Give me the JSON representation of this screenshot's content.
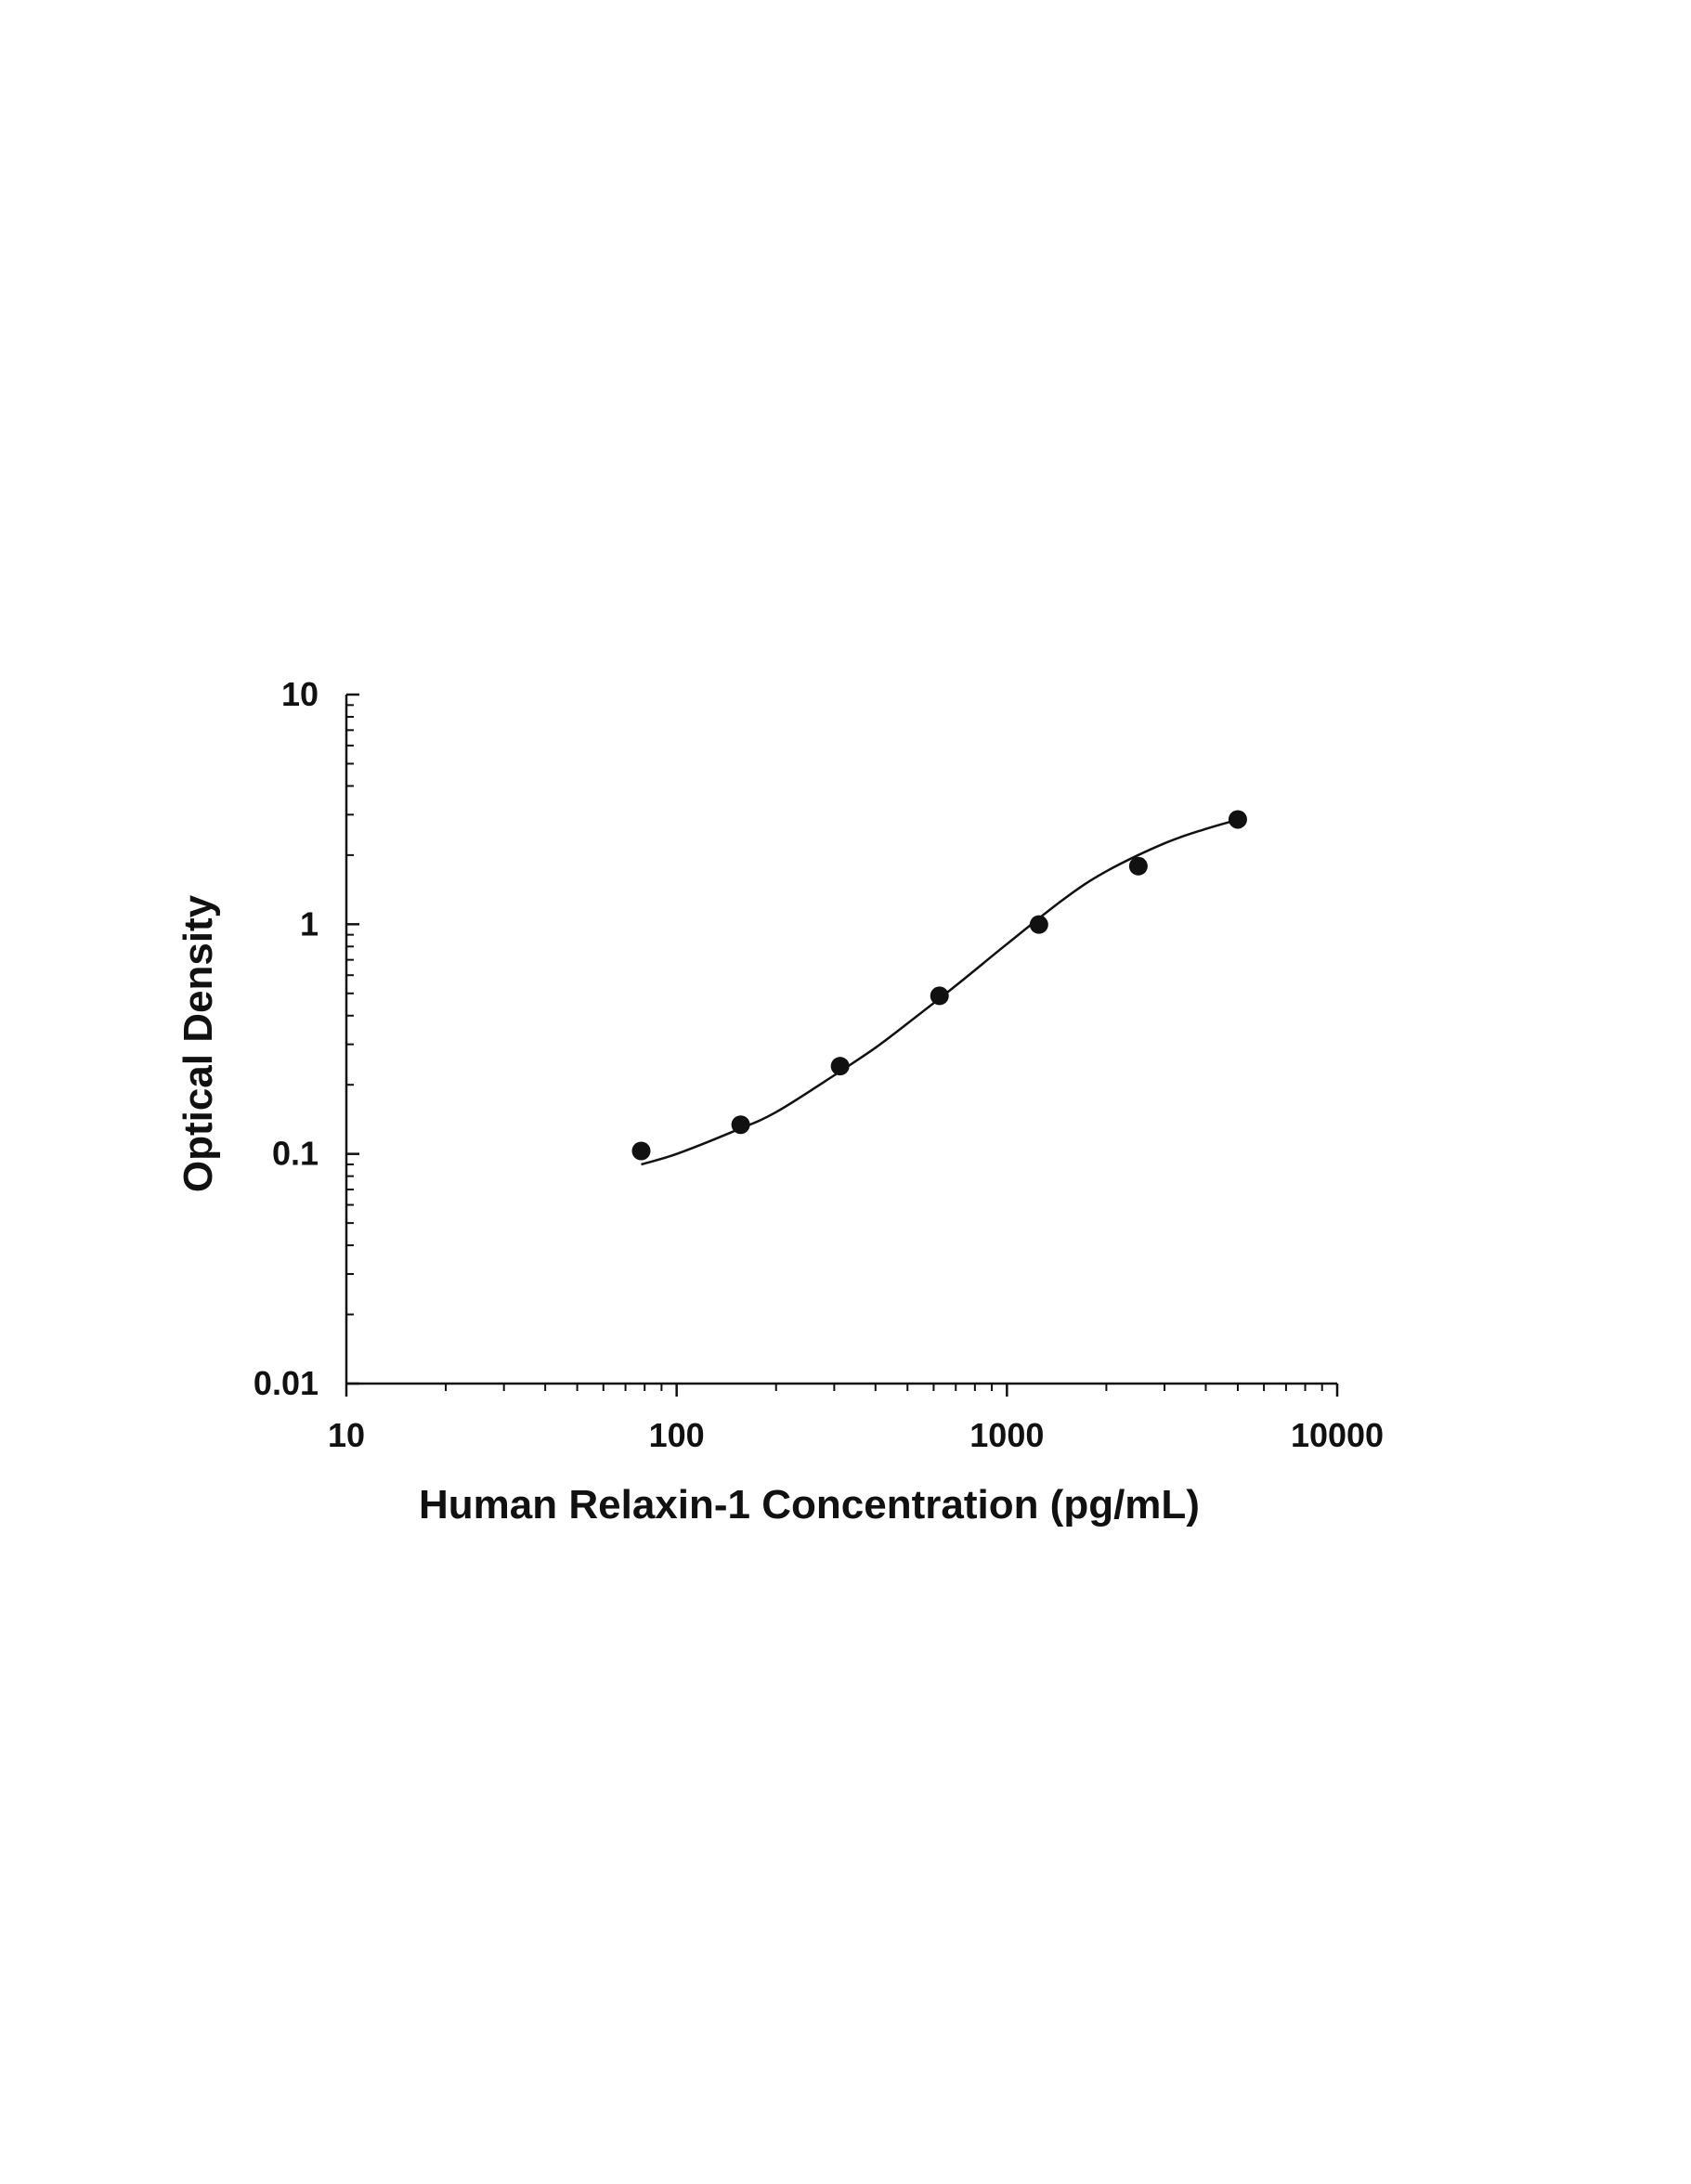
{
  "chart_data": {
    "type": "scatter",
    "title": "",
    "xlabel": "Human Relaxin-1 Concentration (pg/mL)",
    "ylabel": "Optical Density",
    "x_scale": "log",
    "y_scale": "log",
    "xlim": [
      10,
      10000
    ],
    "ylim": [
      0.01,
      10
    ],
    "x_ticks": [
      10,
      100,
      1000,
      10000
    ],
    "x_tick_labels": [
      "10",
      "100",
      "1000",
      "10000"
    ],
    "y_ticks": [
      0.01,
      0.1,
      1,
      10
    ],
    "y_tick_labels": [
      "0.01",
      "0.1",
      "1",
      "10"
    ],
    "grid": false,
    "legend": "none",
    "marker_color": "#111111",
    "line_color": "#111111",
    "series": [
      {
        "x": [
          78.1,
          156.25,
          312.5,
          625,
          1250,
          2500,
          5000
        ],
        "y": [
          0.103,
          0.134,
          0.241,
          0.488,
          0.997,
          1.79,
          2.86
        ]
      }
    ],
    "fit_curve": {
      "x": [
        78.1,
        100,
        150,
        200,
        300,
        400,
        500,
        700,
        1000,
        1500,
        2000,
        3000,
        4000,
        5000
      ],
      "y": [
        0.09,
        0.1,
        0.126,
        0.152,
        0.22,
        0.29,
        0.37,
        0.54,
        0.82,
        1.3,
        1.7,
        2.25,
        2.6,
        2.85
      ]
    }
  }
}
